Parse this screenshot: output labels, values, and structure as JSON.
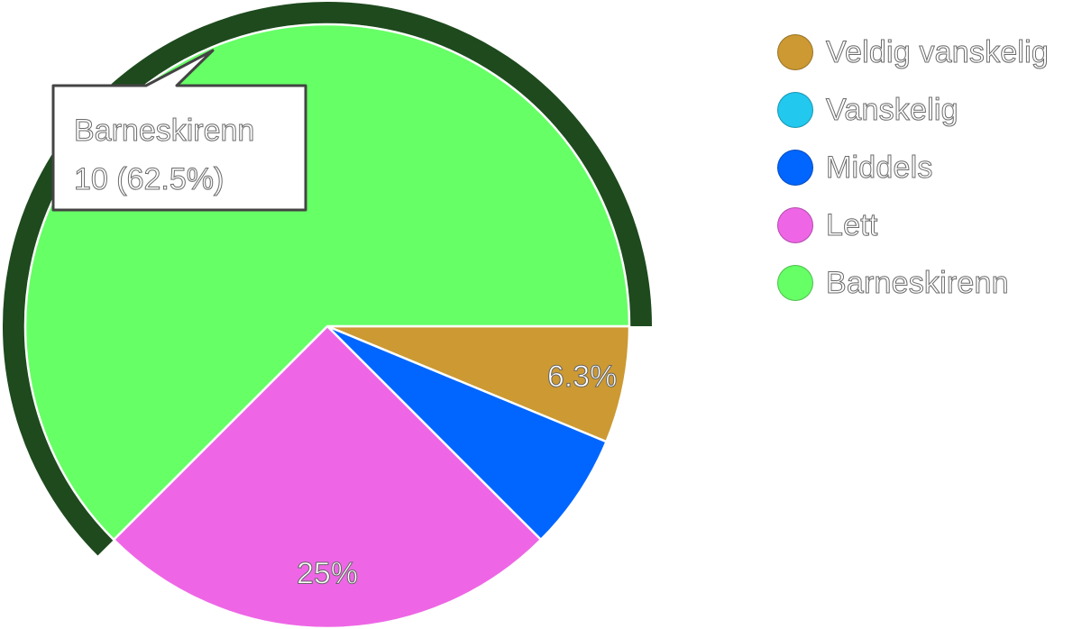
{
  "chart_data": {
    "type": "pie",
    "series": [
      {
        "name": "Veldig vanskelig",
        "value": 1,
        "color": "#cc9933",
        "label": "6.3%"
      },
      {
        "name": "Vanskelig",
        "value": 0,
        "color": "#22c8ee",
        "label": ""
      },
      {
        "name": "Middels",
        "value": 1,
        "color": "#0066ff",
        "label": ""
      },
      {
        "name": "Lett",
        "value": 4,
        "color": "#ee66e6",
        "label": "25%"
      },
      {
        "name": "Barneskirenn",
        "value": 10,
        "color": "#66ff66",
        "label": ""
      }
    ],
    "start_angle_deg": 0,
    "direction": "clockwise",
    "highlighted": "Barneskirenn",
    "highlight_ring_color": "#1e4a1e",
    "legend_position": "right",
    "tooltip": {
      "title": "Barneskirenn",
      "value_text": "10 (62.5%)"
    }
  }
}
